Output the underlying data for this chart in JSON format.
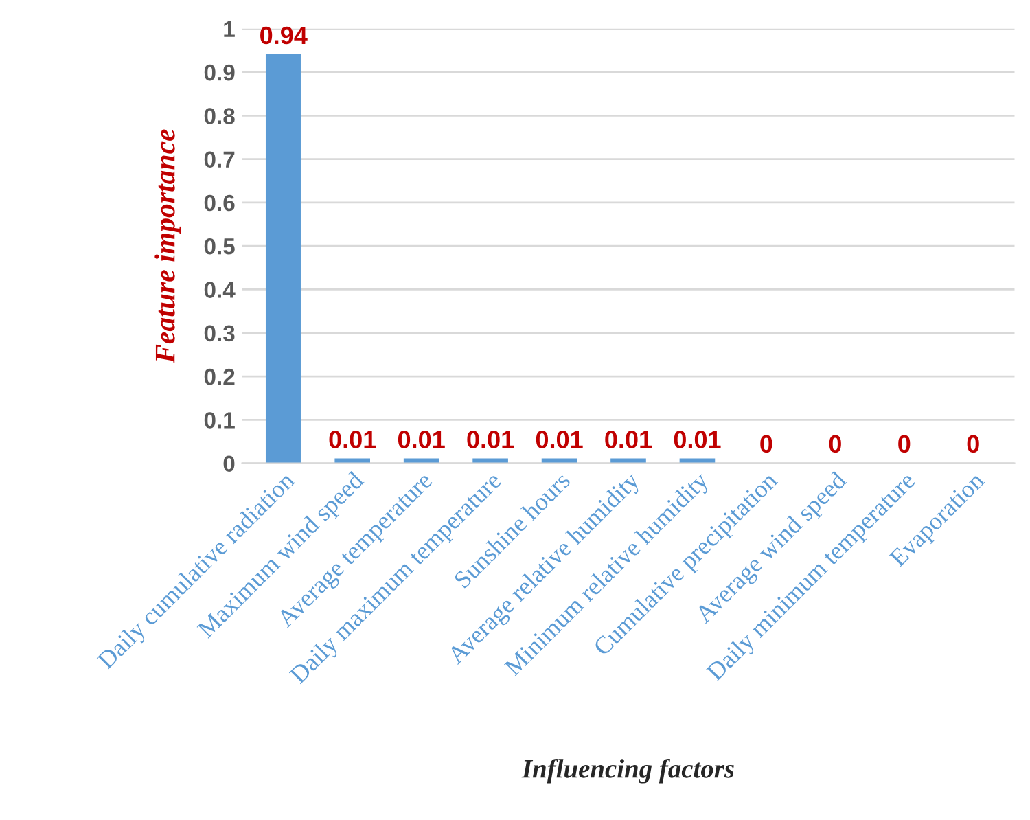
{
  "chart_data": {
    "type": "bar",
    "xlabel": "Influencing factors",
    "ylabel": "Feature importance",
    "categories": [
      "Daily cumulative radiation",
      "Maximum wind speed",
      "Average temperature",
      "Daily maximum temperature",
      "Sunshine hours",
      "Average relative humidity",
      "Minimum relative humidity",
      "Cumulative precipitation",
      "Average wind speed",
      "Daily minimum temperature",
      "Evaporation"
    ],
    "values": [
      0.94,
      0.01,
      0.01,
      0.01,
      0.01,
      0.01,
      0.01,
      0,
      0,
      0,
      0
    ],
    "color": "#5b9bd5",
    "ylim": [
      0,
      1
    ],
    "yticks": [
      0,
      0.1,
      0.2,
      0.3,
      0.4,
      0.5,
      0.6,
      0.7,
      0.8,
      0.9,
      1
    ],
    "grid": "y",
    "data_labels": true
  }
}
